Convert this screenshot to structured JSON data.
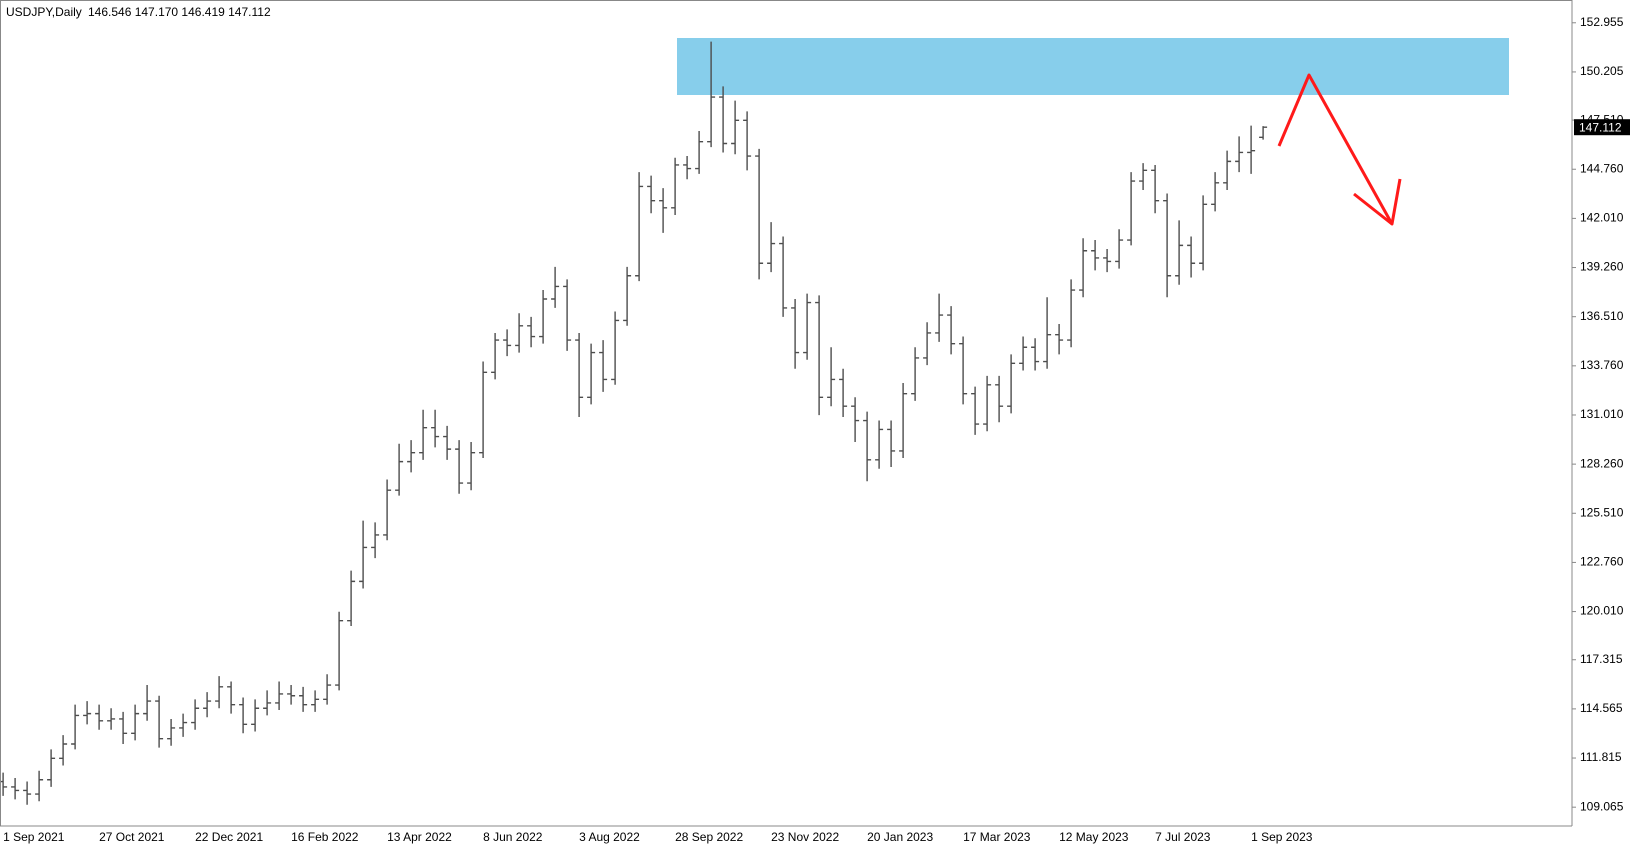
{
  "chart_data": {
    "type": "ohlc",
    "title": "USDJPY,Daily",
    "subtitle": "146.546 147.170 146.419 147.112",
    "color": "#4d4d4d",
    "last_price": 147.112,
    "ylim": [
      108.012,
      153.95
    ],
    "yticks": [
      152.955,
      150.205,
      {
        "value": 147.51,
        "label": "147.510"
      },
      {
        "value": 144.76,
        "label": "144.760"
      },
      {
        "value": 142.01,
        "label": "142.010"
      },
      {
        "value": 139.26,
        "label": "139.260"
      },
      {
        "value": 136.51,
        "label": "136.510"
      },
      {
        "value": 133.76,
        "label": "133.760"
      },
      {
        "value": 131.01,
        "label": "131.010"
      },
      {
        "value": 128.26,
        "label": "128.260"
      },
      {
        "value": 125.51,
        "label": "125.510"
      },
      {
        "value": 122.76,
        "label": "122.760"
      },
      {
        "value": 120.01,
        "label": "120.010"
      },
      117.315,
      114.565,
      111.815,
      109.065
    ],
    "categories": [
      "1 Sep 2021",
      null,
      null,
      null,
      null,
      null,
      null,
      null,
      "27 Oct 2021",
      null,
      null,
      null,
      null,
      null,
      null,
      null,
      "22 Dec 2021",
      null,
      null,
      null,
      null,
      null,
      null,
      null,
      "16 Feb 2022",
      null,
      null,
      null,
      null,
      null,
      null,
      null,
      "13 Apr 2022",
      null,
      null,
      null,
      null,
      null,
      null,
      null,
      "8 Jun 2022",
      null,
      null,
      null,
      null,
      null,
      null,
      null,
      "3 Aug 2022",
      null,
      null,
      null,
      null,
      null,
      null,
      null,
      "28 Sep 2022",
      null,
      null,
      null,
      null,
      null,
      null,
      null,
      "23 Nov 2022",
      null,
      null,
      null,
      null,
      null,
      null,
      null,
      "20 Jan 2023",
      null,
      null,
      null,
      null,
      null,
      null,
      null,
      "17 Mar 2023",
      null,
      null,
      null,
      null,
      null,
      null,
      null,
      "12 May 2023",
      null,
      null,
      null,
      null,
      null,
      null,
      null,
      "7 Jul 2023",
      null,
      null,
      null,
      null,
      null,
      null,
      null,
      "1 Sep 2023",
      null
    ],
    "open": [
      110.5,
      110.2,
      110.0,
      109.8,
      110.6,
      111.8,
      112.6,
      114.2,
      114.3,
      113.9,
      114.0,
      113.2,
      114.3,
      115.0,
      112.9,
      113.5,
      113.8,
      114.6,
      115.0,
      115.8,
      114.8,
      113.7,
      114.6,
      114.9,
      115.4,
      115.3,
      114.8,
      115.1,
      115.9,
      119.5,
      121.7,
      123.6,
      124.3,
      126.8,
      128.4,
      128.9,
      130.3,
      129.8,
      129.1,
      127.2,
      128.9,
      133.4,
      135.2,
      134.9,
      136.0,
      135.4,
      137.5,
      138.2,
      135.2,
      132.0,
      134.5,
      133.0,
      136.3,
      138.8,
      143.8,
      143.0,
      142.6,
      145.0,
      144.8,
      146.3,
      148.8,
      146.2,
      147.5,
      145.5,
      139.5,
      140.6,
      137.0,
      134.5,
      137.3,
      132.0,
      133.0,
      131.5,
      130.7,
      128.5,
      130.2,
      129.0,
      132.2,
      134.2,
      135.6,
      136.6,
      135.0,
      132.2,
      130.5,
      132.7,
      131.5,
      133.9,
      134.8,
      134.0,
      135.5,
      135.2,
      138.0,
      140.2,
      139.8,
      139.6,
      140.8,
      144.1,
      144.7,
      143.0,
      138.8,
      140.5,
      139.5,
      142.8,
      144.0,
      145.2,
      145.7,
      146.546
    ],
    "high": [
      111.0,
      110.7,
      110.5,
      111.1,
      112.3,
      113.1,
      114.8,
      115.0,
      114.8,
      114.6,
      114.4,
      114.8,
      115.9,
      115.3,
      114.0,
      114.3,
      115.1,
      115.5,
      116.4,
      116.1,
      115.2,
      115.1,
      115.6,
      116.1,
      115.9,
      115.8,
      115.6,
      116.5,
      120.0,
      122.3,
      125.1,
      125.0,
      127.4,
      129.4,
      129.6,
      131.3,
      131.3,
      130.4,
      129.6,
      129.5,
      134.0,
      135.6,
      135.8,
      136.7,
      136.5,
      138.0,
      139.3,
      138.6,
      135.6,
      135.0,
      135.2,
      136.8,
      139.3,
      144.6,
      144.4,
      143.7,
      145.4,
      145.5,
      146.9,
      151.9,
      149.4,
      148.6,
      148.0,
      145.9,
      141.8,
      141.0,
      137.5,
      137.8,
      137.7,
      134.8,
      133.6,
      132.0,
      131.2,
      130.7,
      130.7,
      132.8,
      134.8,
      136.2,
      137.8,
      137.1,
      135.4,
      132.6,
      133.2,
      133.2,
      134.4,
      135.4,
      135.3,
      137.6,
      136.1,
      138.6,
      140.9,
      140.8,
      140.3,
      141.4,
      144.6,
      145.1,
      145.0,
      143.4,
      141.9,
      141.0,
      143.3,
      144.6,
      145.8,
      146.6,
      147.2,
      147.17
    ],
    "low": [
      109.7,
      109.5,
      109.2,
      109.4,
      110.2,
      111.4,
      112.3,
      113.7,
      113.4,
      113.4,
      112.6,
      112.8,
      113.9,
      112.4,
      112.5,
      113.0,
      113.4,
      114.1,
      114.6,
      114.3,
      113.2,
      113.3,
      114.2,
      114.5,
      114.8,
      114.4,
      114.4,
      114.8,
      115.6,
      119.2,
      121.3,
      123.0,
      124.0,
      126.5,
      127.8,
      128.5,
      129.2,
      128.5,
      126.6,
      126.8,
      128.6,
      133.0,
      134.3,
      134.5,
      134.8,
      135.0,
      137.0,
      134.6,
      130.9,
      131.6,
      132.3,
      132.7,
      136.0,
      138.5,
      142.3,
      141.2,
      142.2,
      144.2,
      144.5,
      146.0,
      145.7,
      145.6,
      144.7,
      138.6,
      139.0,
      136.5,
      133.6,
      134.1,
      131.0,
      131.5,
      130.9,
      129.5,
      127.3,
      128.0,
      128.1,
      128.6,
      131.8,
      133.8,
      135.1,
      134.4,
      131.6,
      129.9,
      130.1,
      130.6,
      131.1,
      133.5,
      133.5,
      133.6,
      134.4,
      134.8,
      137.6,
      139.1,
      139.0,
      139.2,
      140.5,
      143.6,
      142.3,
      137.6,
      138.3,
      138.7,
      139.1,
      142.4,
      143.6,
      144.6,
      144.5,
      146.419
    ],
    "close": [
      110.2,
      110.0,
      109.8,
      110.6,
      111.8,
      112.6,
      114.2,
      114.3,
      113.9,
      114.0,
      113.2,
      114.3,
      115.0,
      112.9,
      113.5,
      113.8,
      114.6,
      115.0,
      115.8,
      114.8,
      113.7,
      114.6,
      114.9,
      115.4,
      115.3,
      114.8,
      115.1,
      115.9,
      119.5,
      121.7,
      123.6,
      124.3,
      126.8,
      128.4,
      128.9,
      130.3,
      129.8,
      129.1,
      127.2,
      128.9,
      133.4,
      135.2,
      134.9,
      136.0,
      135.4,
      137.5,
      138.2,
      135.2,
      132.0,
      134.5,
      133.0,
      136.3,
      138.8,
      143.8,
      143.0,
      142.6,
      145.0,
      144.8,
      146.3,
      148.8,
      146.2,
      147.5,
      145.5,
      139.5,
      140.6,
      137.0,
      134.5,
      137.3,
      132.0,
      133.0,
      131.5,
      130.7,
      128.5,
      130.2,
      129.0,
      132.2,
      134.2,
      135.6,
      136.6,
      135.0,
      132.2,
      130.5,
      132.7,
      131.5,
      133.9,
      134.8,
      134.0,
      135.5,
      135.2,
      138.0,
      140.2,
      139.8,
      139.6,
      140.8,
      144.1,
      144.7,
      143.0,
      138.8,
      140.5,
      139.5,
      142.8,
      144.0,
      145.2,
      145.7,
      145.8,
      147.112
    ]
  }
}
